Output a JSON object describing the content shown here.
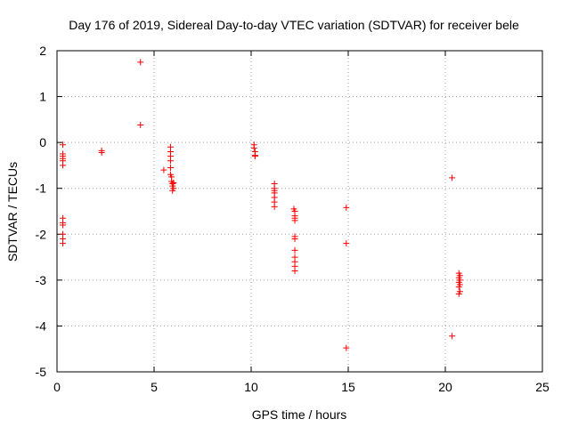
{
  "chart_data": {
    "type": "scatter",
    "title": "Day 176 of 2019, Sidereal Day-to-day VTEC variation (SDTVAR) for receiver bele",
    "xlabel": "GPS time / hours",
    "ylabel": "SDTVAR / TECUs",
    "xlim": [
      0,
      25
    ],
    "ylim": [
      -5,
      2
    ],
    "xticks": [
      0,
      5,
      10,
      15,
      20,
      25
    ],
    "yticks": [
      -5,
      -4,
      -3,
      -2,
      -1,
      0,
      1,
      2
    ],
    "grid": true,
    "marker": "+",
    "color": "#ff0000",
    "series": [
      {
        "name": "SDTVAR",
        "points": [
          [
            0.3,
            -0.05
          ],
          [
            0.3,
            -0.25
          ],
          [
            0.3,
            -0.3
          ],
          [
            0.3,
            -0.35
          ],
          [
            0.3,
            -0.4
          ],
          [
            0.3,
            -0.5
          ],
          [
            0.3,
            -1.65
          ],
          [
            0.3,
            -1.75
          ],
          [
            0.3,
            -1.8
          ],
          [
            0.3,
            -2.0
          ],
          [
            0.3,
            -2.1
          ],
          [
            0.3,
            -2.2
          ],
          [
            2.3,
            -0.18
          ],
          [
            2.3,
            -0.22
          ],
          [
            4.3,
            1.75
          ],
          [
            4.3,
            0.38
          ],
          [
            5.5,
            -0.6
          ],
          [
            5.85,
            -0.1
          ],
          [
            5.85,
            -0.2
          ],
          [
            5.85,
            -0.3
          ],
          [
            5.85,
            -0.4
          ],
          [
            5.85,
            -0.55
          ],
          [
            5.85,
            -0.7
          ],
          [
            5.9,
            -0.75
          ],
          [
            5.9,
            -0.85
          ],
          [
            5.95,
            -0.9
          ],
          [
            5.95,
            -0.95
          ],
          [
            6.0,
            -0.88
          ],
          [
            6.0,
            -1.0
          ],
          [
            5.95,
            -1.05
          ],
          [
            10.15,
            -0.05
          ],
          [
            10.15,
            -0.12
          ],
          [
            10.2,
            -0.2
          ],
          [
            10.2,
            -0.28
          ],
          [
            10.2,
            -0.3
          ],
          [
            11.2,
            -0.9
          ],
          [
            11.2,
            -1.0
          ],
          [
            11.2,
            -1.05
          ],
          [
            11.2,
            -1.1
          ],
          [
            11.2,
            -1.2
          ],
          [
            11.2,
            -1.3
          ],
          [
            11.2,
            -1.4
          ],
          [
            12.2,
            -1.45
          ],
          [
            12.25,
            -1.5
          ],
          [
            12.25,
            -1.6
          ],
          [
            12.25,
            -1.65
          ],
          [
            12.25,
            -1.7
          ],
          [
            12.25,
            -2.05
          ],
          [
            12.25,
            -2.1
          ],
          [
            12.25,
            -2.35
          ],
          [
            12.25,
            -2.5
          ],
          [
            12.25,
            -2.6
          ],
          [
            12.25,
            -2.7
          ],
          [
            12.25,
            -2.8
          ],
          [
            14.9,
            -1.42
          ],
          [
            14.9,
            -2.2
          ],
          [
            14.9,
            -4.48
          ],
          [
            20.35,
            -0.77
          ],
          [
            20.35,
            -4.22
          ],
          [
            20.7,
            -2.85
          ],
          [
            20.75,
            -2.9
          ],
          [
            20.7,
            -2.95
          ],
          [
            20.75,
            -3.0
          ],
          [
            20.7,
            -3.05
          ],
          [
            20.75,
            -3.1
          ],
          [
            20.7,
            -3.15
          ],
          [
            20.75,
            -3.25
          ],
          [
            20.7,
            -3.3
          ]
        ]
      }
    ]
  }
}
